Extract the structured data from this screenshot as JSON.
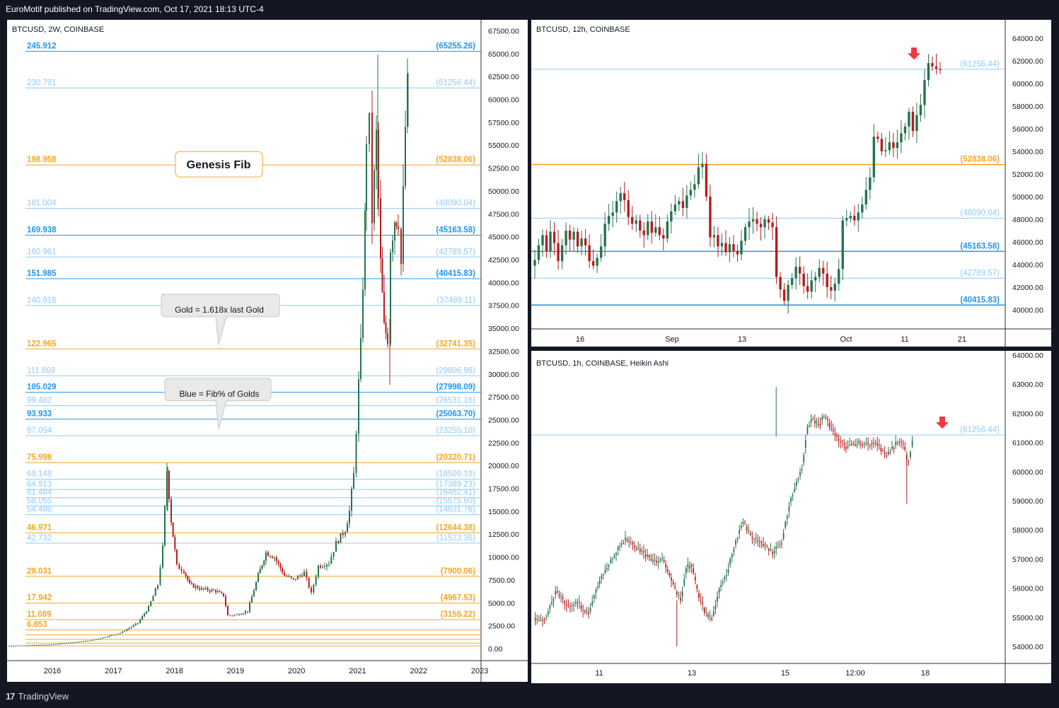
{
  "header": {
    "publish_note": "EuroMotif published on TradingView.com, Oct 17, 2021 18:13 UTC-4"
  },
  "footer": {
    "brand": "TradingView",
    "logo_glyph": "17"
  },
  "colors": {
    "gold": "#f5a623",
    "blue_light": "#90caf9",
    "blue_dark": "#2196f3",
    "up": "#26734d",
    "down": "#b71c1c",
    "bg_dark": "#131722"
  },
  "chart_data": [
    {
      "type": "candlestick",
      "title": "BTCUSD, 2W, COINBASE",
      "ylim": [
        0,
        68000
      ],
      "y_ticks": [
        "67500.00",
        "65000.00",
        "62500.00",
        "60000.00",
        "57500.00",
        "55000.00",
        "52500.00",
        "50000.00",
        "47500.00",
        "45000.00",
        "42500.00",
        "40000.00",
        "37500.00",
        "35000.00",
        "32500.00",
        "30000.00",
        "27500.00",
        "25000.00",
        "22500.00",
        "20000.00",
        "17500.00",
        "15000.00",
        "12500.00",
        "10000.00",
        "7500.00",
        "5000.00",
        "2500.00",
        "0.00"
      ],
      "x_ticks": [
        "2016",
        "2017",
        "2018",
        "2019",
        "2020",
        "2021",
        "2022",
        "2023"
      ],
      "fib_levels": [
        {
          "ratio": "245.912",
          "price": "(65255.26)",
          "value": 65255.26,
          "color": "blue_dark"
        },
        {
          "ratio": "230.791",
          "price": "(61256.44)",
          "value": 61256.44,
          "color": "blue_light"
        },
        {
          "ratio": "198.958",
          "price": "(52838.06)",
          "value": 52838.06,
          "color": "gold"
        },
        {
          "ratio": "181.004",
          "price": "(48090.04)",
          "value": 48090.04,
          "color": "blue_light"
        },
        {
          "ratio": "169.938",
          "price": "(45163.58)",
          "value": 45163.58,
          "color": "blue_dark"
        },
        {
          "ratio": "160.961",
          "price": "(42789.57)",
          "value": 42789.57,
          "color": "blue_light"
        },
        {
          "ratio": "151.985",
          "price": "(40415.83)",
          "value": 40415.83,
          "color": "blue_dark"
        },
        {
          "ratio": "140.918",
          "price": "(37489.11)",
          "value": 37489.11,
          "color": "blue_light"
        },
        {
          "ratio": "122.965",
          "price": "(32741.35)",
          "value": 32741.35,
          "color": "gold"
        },
        {
          "ratio": "111.869",
          "price": "(29806.96)",
          "value": 29806.96,
          "color": "blue_light"
        },
        {
          "ratio": "105.029",
          "price": "(27998.09)",
          "value": 27998.09,
          "color": "blue_dark"
        },
        {
          "ratio": "99.482",
          "price": "(26531.16)",
          "value": 26531.16,
          "color": "blue_light"
        },
        {
          "ratio": "93.933",
          "price": "(25063.70)",
          "value": 25063.7,
          "color": "blue_dark"
        },
        {
          "ratio": "87.094",
          "price": "(23255.10)",
          "value": 23255.1,
          "color": "blue_light"
        },
        {
          "ratio": "75.998",
          "price": "(20320.71)",
          "value": 20320.71,
          "color": "gold"
        },
        {
          "ratio": "69.148",
          "price": "(18509.19)",
          "value": 18509.19,
          "color": "blue_light"
        },
        {
          "ratio": "64.913",
          "price": "(17389.23)",
          "value": 17389.23,
          "color": "blue_light"
        },
        {
          "ratio": "61.484",
          "price": "(16482.41)",
          "value": 16482.41,
          "color": "blue_light"
        },
        {
          "ratio": "58.055",
          "price": "(15575.60)",
          "value": 15575.6,
          "color": "blue_light"
        },
        {
          "ratio": "54.486",
          "price": "(14631.76)",
          "value": 14631.76,
          "color": "blue_light"
        },
        {
          "ratio": "46.971",
          "price": "(12644.38)",
          "value": 12644.38,
          "color": "gold"
        },
        {
          "ratio": "42.732",
          "price": "(11523.36)",
          "value": 11523.36,
          "color": "blue_light"
        },
        {
          "ratio": "29.031",
          "price": "(7900.06)",
          "value": 7900.06,
          "color": "gold"
        },
        {
          "ratio": "17.942",
          "price": "(4967.53)",
          "value": 4967.53,
          "color": "gold"
        },
        {
          "ratio": "11.089",
          "price": "(3155.22)",
          "value": 3155.22,
          "color": "gold"
        },
        {
          "ratio": "6.853",
          "price": "",
          "value": 2035,
          "color": "gold"
        }
      ],
      "annotations": {
        "genesis": "Genesis Fib",
        "gold_note": "Gold = 1.618x last Gold",
        "blue_note": "Blue = Fib% of Golds"
      },
      "notable_values": {
        "peak_2017": 19891,
        "high_2021_apr": 64895,
        "high_2021_oct": 62900,
        "low_2021_jul": 28800,
        "last_close": 61300
      }
    },
    {
      "type": "candlestick",
      "title": "BTCUSD, 12h, COINBASE",
      "ylim": [
        38900,
        64900
      ],
      "y_ticks": [
        "64000.00",
        "62000.00",
        "60000.00",
        "58000.00",
        "56000.00",
        "54000.00",
        "52000.00",
        "50000.00",
        "48000.00",
        "46000.00",
        "44000.00",
        "42000.00",
        "40000.00"
      ],
      "x_ticks": [
        "16",
        "Sep",
        "13",
        "Oct",
        "11",
        "21"
      ],
      "levels": [
        {
          "price": "(61256.44)",
          "value": 61256.44,
          "color": "blue_light"
        },
        {
          "price": "(52838.06)",
          "value": 52838.06,
          "color": "gold"
        },
        {
          "price": "(48090.04)",
          "value": 48090.04,
          "color": "blue_light"
        },
        {
          "price": "(45163.58)",
          "value": 45163.58,
          "color": "blue_dark"
        },
        {
          "price": "(42789.57)",
          "value": 42789.57,
          "color": "blue_light"
        },
        {
          "price": "(40415.83)",
          "value": 40415.83,
          "color": "blue_dark"
        }
      ],
      "closes": [
        44400,
        45700,
        46600,
        45200,
        46900,
        45900,
        44300,
        45700,
        47000,
        46200,
        46900,
        45600,
        46300,
        45700,
        44300,
        43900,
        44600,
        45600,
        47600,
        48300,
        48600,
        49600,
        50300,
        49700,
        48200,
        47600,
        47900,
        47000,
        46600,
        47800,
        46800,
        47300,
        46600,
        46300,
        47800,
        48700,
        49300,
        49600,
        49000,
        50100,
        50600,
        51100,
        52600,
        52900,
        50000,
        46400,
        46600,
        45600,
        45900,
        45100,
        45800,
        45200,
        44900,
        46100,
        47300,
        47800,
        48000,
        47600,
        47300,
        48000,
        47700,
        47300,
        42900,
        41800,
        40800,
        42200,
        42800,
        43800,
        43200,
        42100,
        41600,
        42600,
        42900,
        43700,
        43200,
        42000,
        41700,
        42300,
        43600,
        47900,
        48100,
        48300,
        47900,
        48600,
        49300,
        50600,
        51700,
        55300,
        55100,
        54000,
        54100,
        54800,
        54300,
        54800,
        55600,
        56200,
        57500,
        55800,
        57200,
        58100,
        60300,
        61800,
        61500,
        61300,
        61200
      ],
      "arrow_price": 62300
    },
    {
      "type": "candlestick",
      "title": "BTCUSD, 1h, COINBASE, Heikin Ashi",
      "ylim": [
        53500,
        64000
      ],
      "y_ticks": [
        "64000.00",
        "63000.00",
        "62000.00",
        "61000.00",
        "60000.00",
        "59000.00",
        "58000.00",
        "57000.00",
        "56000.00",
        "55000.00",
        "54000.00"
      ],
      "x_ticks": [
        "11",
        "13",
        "15",
        "12:00",
        "18"
      ],
      "levels": [
        {
          "price": "(61256.44)",
          "value": 61256.44,
          "color": "blue_light"
        }
      ],
      "waypoints": [
        [
          0,
          55000
        ],
        [
          6,
          54800
        ],
        [
          12,
          55900
        ],
        [
          18,
          55400
        ],
        [
          24,
          55500
        ],
        [
          30,
          55100
        ],
        [
          36,
          56300
        ],
        [
          40,
          56700
        ],
        [
          46,
          57400
        ],
        [
          50,
          57700
        ],
        [
          56,
          57400
        ],
        [
          60,
          57200
        ],
        [
          65,
          56900
        ],
        [
          70,
          57000
        ],
        [
          76,
          56100
        ],
        [
          80,
          55600
        ],
        [
          83,
          56700
        ],
        [
          86,
          56800
        ],
        [
          90,
          55700
        ],
        [
          94,
          55100
        ],
        [
          97,
          55000
        ],
        [
          101,
          55900
        ],
        [
          106,
          56700
        ],
        [
          110,
          57600
        ],
        [
          114,
          58300
        ],
        [
          118,
          57800
        ],
        [
          124,
          57600
        ],
        [
          130,
          57200
        ],
        [
          135,
          57600
        ],
        [
          140,
          59100
        ],
        [
          143,
          59600
        ],
        [
          146,
          60100
        ],
        [
          149,
          61600
        ],
        [
          152,
          61800
        ],
        [
          155,
          61600
        ],
        [
          158,
          61900
        ],
        [
          160,
          61700
        ],
        [
          162,
          61500
        ],
        [
          165,
          61200
        ],
        [
          170,
          60800
        ],
        [
          176,
          61000
        ],
        [
          182,
          60900
        ],
        [
          186,
          61000
        ],
        [
          190,
          60700
        ],
        [
          192,
          60500
        ],
        [
          195,
          60800
        ],
        [
          198,
          61000
        ],
        [
          201,
          60900
        ],
        [
          204,
          60300
        ],
        [
          206,
          61000
        ]
      ],
      "arrow_price": 61550
    }
  ]
}
